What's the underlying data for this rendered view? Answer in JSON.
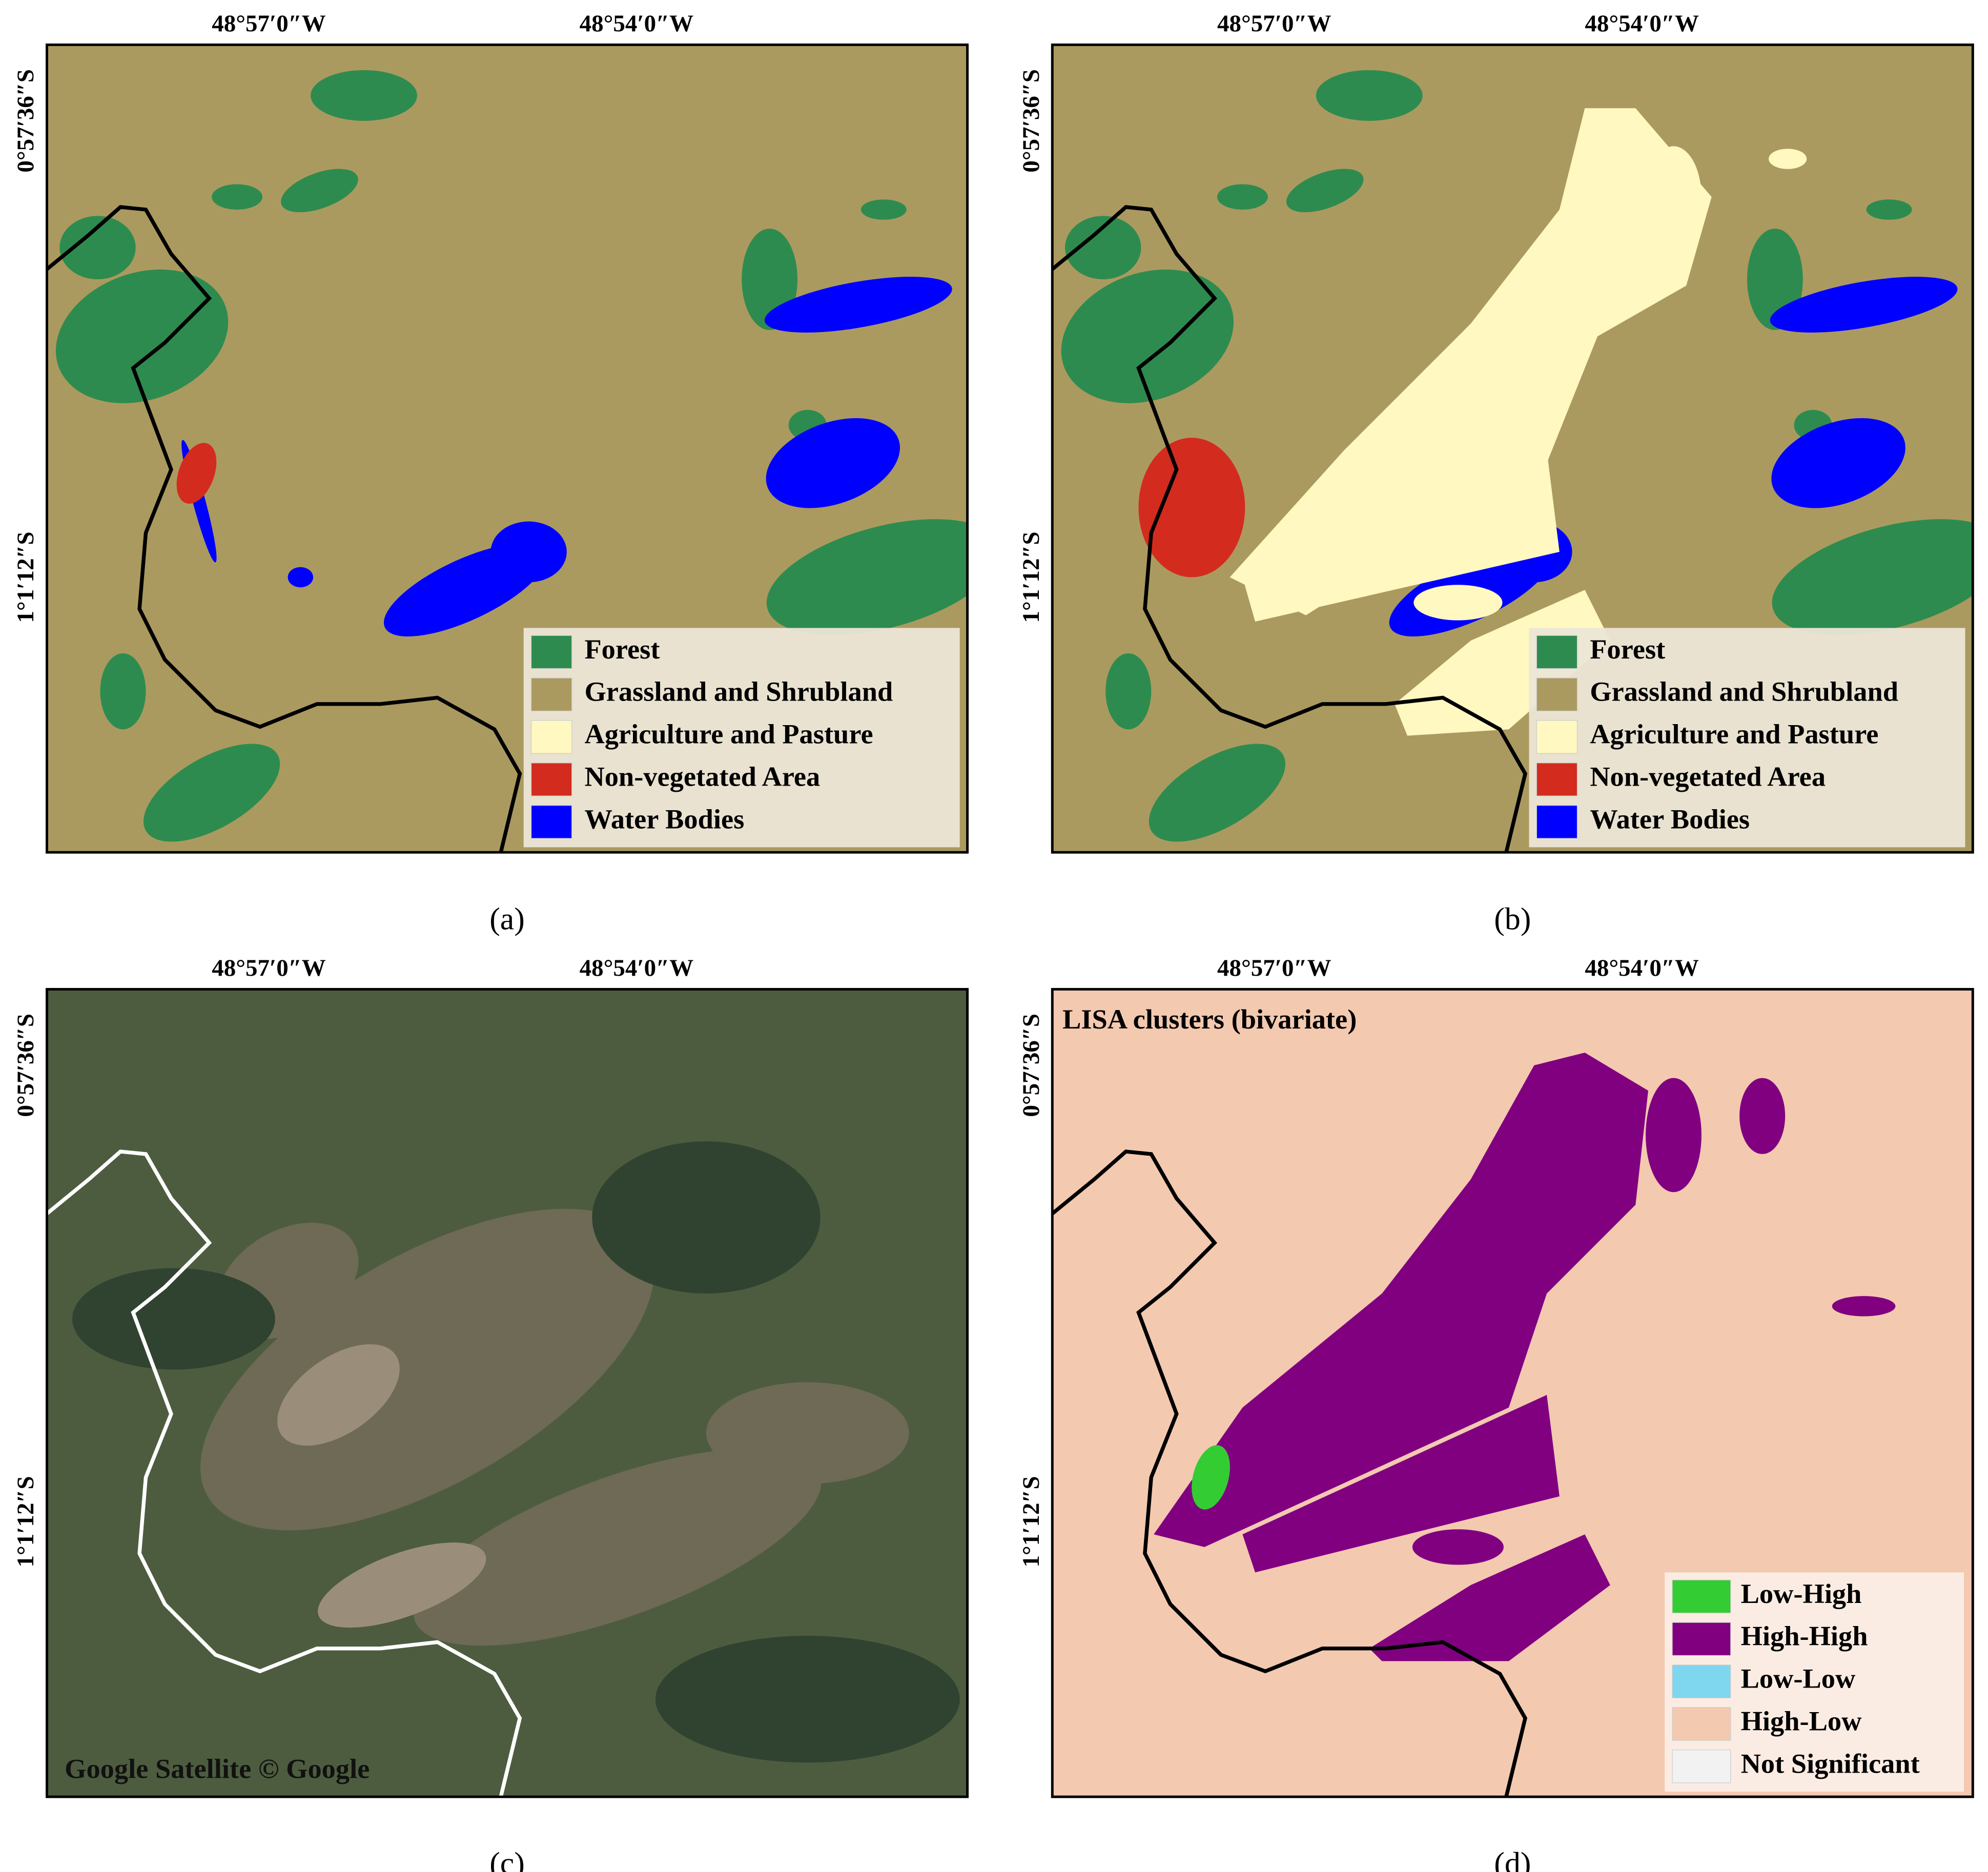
{
  "panels": [
    {
      "label": "(a)",
      "x_labels": [
        "48°57′0″W",
        "48°54′0″W"
      ],
      "y_labels": [
        "0°57′36″S",
        "1°1′12″S"
      ],
      "legend": [
        {
          "name": "Forest",
          "color": "#2e8b4f"
        },
        {
          "name": "Grassland and Shrubland",
          "color": "#ab9a5f"
        },
        {
          "name": "Agriculture and Pasture",
          "color": "#fff8c0"
        },
        {
          "name": "Non-vegetated Area",
          "color": "#d42b1f"
        },
        {
          "name": "Water Bodies",
          "color": "#0000ff"
        }
      ]
    },
    {
      "label": "(b)",
      "x_labels": [
        "48°57′0″W",
        "48°54′0″W"
      ],
      "y_labels": [
        "0°57′36″S",
        "1°1′12″S"
      ],
      "legend": [
        {
          "name": "Forest",
          "color": "#2e8b4f"
        },
        {
          "name": "Grassland and Shrubland",
          "color": "#ab9a5f"
        },
        {
          "name": "Agriculture and Pasture",
          "color": "#fff8c0"
        },
        {
          "name": "Non-vegetated Area",
          "color": "#d42b1f"
        },
        {
          "name": "Water Bodies",
          "color": "#0000ff"
        }
      ]
    },
    {
      "label": "(c)",
      "x_labels": [
        "48°57′0″W",
        "48°54′0″W"
      ],
      "y_labels": [
        "0°57′36″S",
        "1°1′12″S"
      ],
      "attribution": "Google Satellite © Google"
    },
    {
      "label": "(d)",
      "x_labels": [
        "48°57′0″W",
        "48°54′0″W"
      ],
      "y_labels": [
        "0°57′36″S",
        "1°1′12″S"
      ],
      "title": "LISA clusters (bivariate)",
      "legend": [
        {
          "name": "Low-High",
          "color": "#33cc33"
        },
        {
          "name": "High-High",
          "color": "#800080"
        },
        {
          "name": "Low-Low",
          "color": "#7fd6ef"
        },
        {
          "name": "High-Low",
          "color": "#f3c9b0"
        },
        {
          "name": "Not Significant",
          "color": "#f2f2f2"
        }
      ]
    }
  ]
}
